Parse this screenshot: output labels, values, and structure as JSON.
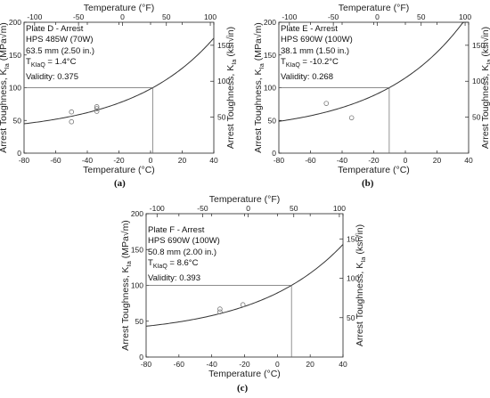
{
  "chart_data": [
    {
      "type": "scatter",
      "panel": "a",
      "caption": "(a)",
      "xlabel": "Temperature (°C)",
      "x2label": "Temperature (°F)",
      "ylabel_left": "Arrest Toughness, K",
      "ylabel_left_sub": "Ia",
      "ylabel_left_unit": " (MPa√m)",
      "ylabel_right": "Arrest Toughness, K",
      "ylabel_right_sub": "Ia",
      "ylabel_right_unit": " (ksi√in)",
      "xlim": [
        -80,
        40
      ],
      "ylim": [
        0,
        200
      ],
      "xticks": [
        -80,
        -60,
        -40,
        -20,
        0,
        20,
        40
      ],
      "yticks": [
        0,
        50,
        100,
        150,
        200
      ],
      "x2ticks": [
        -100,
        -50,
        0,
        50,
        100
      ],
      "y2ticks": [
        50,
        100,
        150
      ],
      "annotation": {
        "line1": "Plate D - Arrest",
        "line2": "HPS 485W (70W)",
        "line3": "63.5 mm (2.50 in.)",
        "t_prefix": "T",
        "t_sub": "KIaQ",
        "t_value": " = 1.4°C",
        "line5": "Validity: 0.375"
      },
      "T_KIaQ": 1.4,
      "reference_K": 100,
      "points": [
        {
          "x": -50,
          "y": 63
        },
        {
          "x": -50,
          "y": 48
        },
        {
          "x": -34,
          "y": 71
        },
        {
          "x": -34,
          "y": 68
        },
        {
          "x": -34,
          "y": 64
        }
      ]
    },
    {
      "type": "scatter",
      "panel": "b",
      "caption": "(b)",
      "xlabel": "Temperature (°C)",
      "x2label": "Temperature (°F)",
      "ylabel_left": "Arrest Toughness, K",
      "ylabel_left_sub": "Ia",
      "ylabel_left_unit": " (MPa√m)",
      "ylabel_right": "Arrest Toughness, K",
      "ylabel_right_sub": "Ia",
      "ylabel_right_unit": " (ksi√in)",
      "xlim": [
        -80,
        40
      ],
      "ylim": [
        0,
        200
      ],
      "xticks": [
        -80,
        -60,
        -40,
        -20,
        0,
        20,
        40
      ],
      "yticks": [
        0,
        50,
        100,
        150,
        200
      ],
      "x2ticks": [
        -100,
        -50,
        0,
        50,
        100
      ],
      "y2ticks": [
        50,
        100,
        150
      ],
      "annotation": {
        "line1": "Plate E - Arrest",
        "line2": "HPS 690W (100W)",
        "line3": "38.1 mm (1.50 in.)",
        "t_prefix": "T",
        "t_sub": "KIaQ",
        "t_value": " = -10.2°C",
        "line5": "Validity: 0.268"
      },
      "T_KIaQ": -10.2,
      "reference_K": 100,
      "points": [
        {
          "x": -50,
          "y": 76
        },
        {
          "x": -34,
          "y": 54
        }
      ]
    },
    {
      "type": "scatter",
      "panel": "c",
      "caption": "(c)",
      "xlabel": "Temperature (°C)",
      "x2label": "Temperature (°F)",
      "ylabel_left": "Arrest Toughness, K",
      "ylabel_left_sub": "Ia",
      "ylabel_left_unit": " (MPa√m)",
      "ylabel_right": "Arrest Toughness, K",
      "ylabel_right_sub": "Ia",
      "ylabel_right_unit": " (ksi√in)",
      "xlim": [
        -80,
        40
      ],
      "ylim": [
        0,
        200
      ],
      "xticks": [
        -80,
        -60,
        -40,
        -20,
        0,
        20,
        40
      ],
      "yticks": [
        0,
        50,
        100,
        150,
        200
      ],
      "x2ticks": [
        -100,
        -50,
        0,
        50,
        100
      ],
      "y2ticks": [
        50,
        100,
        150
      ],
      "annotation": {
        "line1": "Plate F - Arrest",
        "line2": "HPS 690W (100W)",
        "line3": "50.8 mm (2.00 in.)",
        "t_prefix": "T",
        "t_sub": "KIaQ",
        "t_value": " = 8.6°C",
        "line5": "Validity: 0.393"
      },
      "T_KIaQ": 8.6,
      "reference_K": 100,
      "points": [
        {
          "x": -35,
          "y": 67
        },
        {
          "x": -35,
          "y": 63
        },
        {
          "x": -21,
          "y": 73
        }
      ]
    }
  ]
}
